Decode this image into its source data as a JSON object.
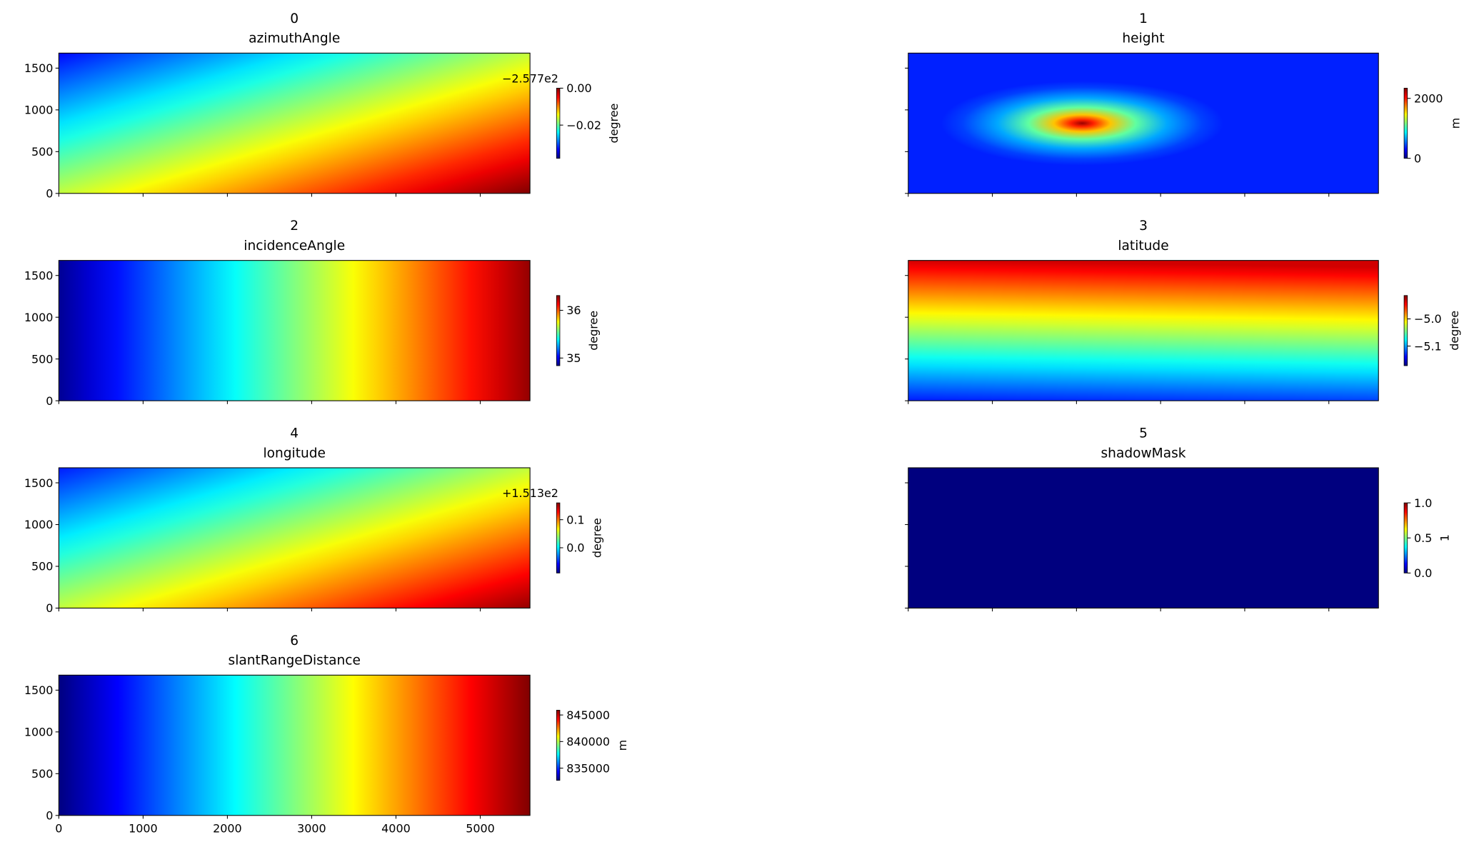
{
  "chart_data": [
    {
      "type": "heatmap",
      "title": "0",
      "subtitle": "azimuthAngle",
      "cmap": "jet",
      "xlim": [
        0,
        5590
      ],
      "ylim": [
        0,
        1680
      ],
      "xticks": [
        0,
        1000,
        2000,
        3000,
        4000,
        5000
      ],
      "yticks": [
        0,
        500,
        1000,
        1500
      ],
      "colorbar": {
        "label": "degree",
        "lim": [
          -0.038,
          0
        ],
        "offset_text": "−2.577e2",
        "ticks": [
          {
            "value": -0.02,
            "label": "−0.02"
          },
          {
            "value": 0,
            "label": "0.00"
          }
        ]
      }
    },
    {
      "type": "heatmap",
      "title": "1",
      "subtitle": "height",
      "cmap": "jet",
      "xlim": [
        0,
        5590
      ],
      "ylim": [
        0,
        1680
      ],
      "xticks": [
        0,
        1000,
        2000,
        3000,
        4000,
        5000
      ],
      "yticks": [
        0,
        500,
        1000,
        1500
      ],
      "colorbar": {
        "label": "m",
        "lim": [
          0,
          2340
        ],
        "ticks": [
          0,
          2000
        ]
      }
    },
    {
      "type": "heatmap",
      "title": "2",
      "subtitle": "incidenceAngle",
      "cmap": "jet",
      "xlim": [
        0,
        5590
      ],
      "ylim": [
        0,
        1680
      ],
      "xticks": [
        0,
        1000,
        2000,
        3000,
        4000,
        5000
      ],
      "yticks": [
        0,
        500,
        1000,
        1500
      ],
      "colorbar": {
        "label": "degree",
        "lim": [
          34.84,
          36.31
        ],
        "ticks": [
          35,
          36
        ]
      }
    },
    {
      "type": "heatmap",
      "title": "3",
      "subtitle": "latitude",
      "cmap": "jet",
      "xlim": [
        0,
        5590
      ],
      "ylim": [
        0,
        1680
      ],
      "xticks": [
        0,
        1000,
        2000,
        3000,
        4000,
        5000
      ],
      "yticks": [
        0,
        500,
        1000,
        1500
      ],
      "colorbar": {
        "label": "degree",
        "lim": [
          -5.172,
          -4.914
        ],
        "ticks": [
          {
            "value": -5.1,
            "label": "−5.1"
          },
          {
            "value": -5.0,
            "label": "−5.0"
          }
        ]
      }
    },
    {
      "type": "heatmap",
      "title": "4",
      "subtitle": "longitude",
      "cmap": "jet",
      "xlim": [
        0,
        5590
      ],
      "ylim": [
        0,
        1680
      ],
      "xticks": [
        0,
        1000,
        2000,
        3000,
        4000,
        5000
      ],
      "yticks": [
        0,
        500,
        1000,
        1500
      ],
      "colorbar": {
        "label": "degree",
        "lim": [
          -0.09,
          0.16
        ],
        "offset_text": "+1.513e2",
        "ticks": [
          {
            "value": 0.0,
            "label": "0.0"
          },
          {
            "value": 0.1,
            "label": "0.1"
          }
        ]
      }
    },
    {
      "type": "heatmap",
      "title": "5",
      "subtitle": "shadowMask",
      "cmap": "jet",
      "xlim": [
        0,
        5590
      ],
      "ylim": [
        0,
        1680
      ],
      "xticks": [
        0,
        1000,
        2000,
        3000,
        4000,
        5000
      ],
      "yticks": [
        0,
        500,
        1000,
        1500
      ],
      "colorbar": {
        "label": "1",
        "lim": [
          0,
          1
        ],
        "ticks": [
          {
            "value": 0.0,
            "label": "0.0"
          },
          {
            "value": 0.5,
            "label": "0.5"
          },
          {
            "value": 1.0,
            "label": "1.0"
          }
        ]
      }
    },
    {
      "type": "heatmap",
      "title": "6",
      "subtitle": "slantRangeDistance",
      "cmap": "jet",
      "xlim": [
        0,
        5590
      ],
      "ylim": [
        0,
        1680
      ],
      "xticks": [
        0,
        1000,
        2000,
        3000,
        4000,
        5000
      ],
      "yticks": [
        0,
        500,
        1000,
        1500
      ],
      "colorbar": {
        "label": "m",
        "lim": [
          832700,
          845900
        ],
        "ticks": [
          835000,
          840000,
          845000
        ]
      }
    }
  ]
}
